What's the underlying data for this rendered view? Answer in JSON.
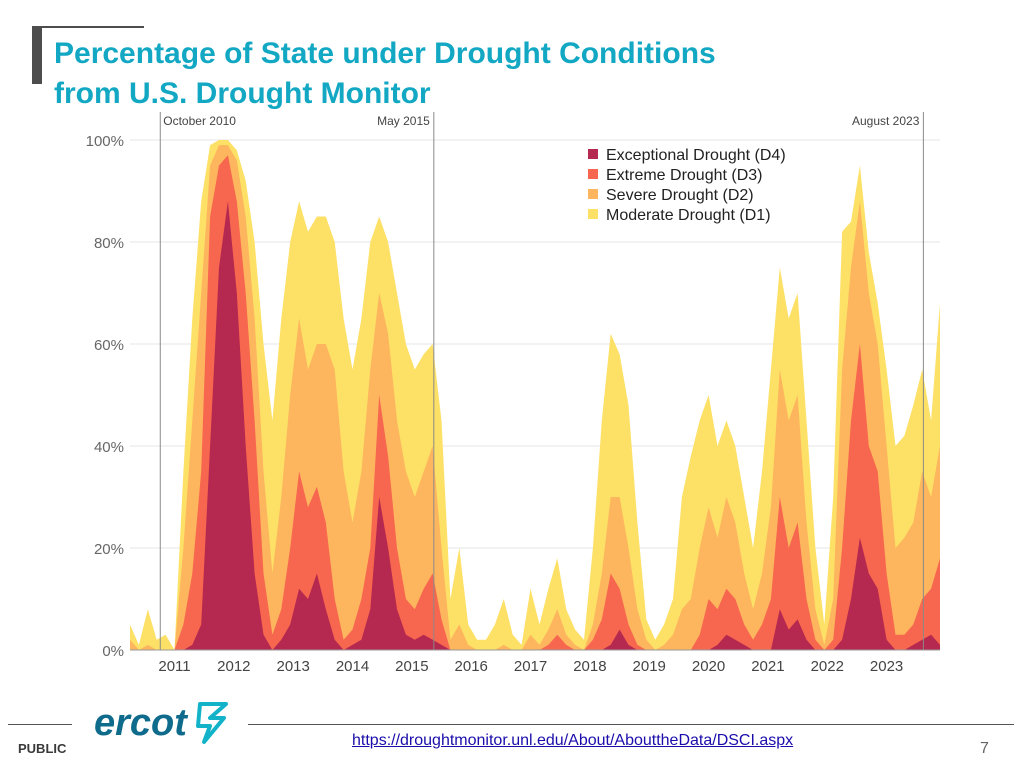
{
  "title": {
    "line1": "Percentage of State under Drought Conditions",
    "line2": "from U.S. Drought Monitor"
  },
  "footer": {
    "public_label": "PUBLIC",
    "logo_text": "ercot",
    "source_link": "https://droughtmonitor.unl.edu/About/AbouttheData/DSCI.aspx",
    "page_number": "7"
  },
  "colors": {
    "title": "#12a7c3",
    "d1": "#fde066",
    "d2": "#fdb55e",
    "d3": "#f7664e",
    "d4": "#b5284f",
    "logo": "#0f6b8c",
    "logo_accent": "#12b3c8"
  },
  "chart_data": {
    "type": "area",
    "ylim": [
      0,
      100
    ],
    "xlim": [
      2010.25,
      2023.9
    ],
    "yticks": [
      0,
      20,
      40,
      60,
      80,
      100
    ],
    "ytick_labels": [
      "0%",
      "20%",
      "40%",
      "60%",
      "80%",
      "100%"
    ],
    "xticks": [
      2011,
      2012,
      2013,
      2014,
      2015,
      2016,
      2017,
      2018,
      2019,
      2020,
      2021,
      2022,
      2023
    ],
    "xtick_labels": [
      "2011",
      "2012",
      "2013",
      "2014",
      "2015",
      "2016",
      "2017",
      "2018",
      "2019",
      "2020",
      "2021",
      "2022",
      "2023"
    ],
    "annotations": [
      {
        "x": 2010.76,
        "label": "October 2010"
      },
      {
        "x": 2015.37,
        "label": "May 2015"
      },
      {
        "x": 2023.62,
        "label": "August 2023"
      }
    ],
    "x": [
      2010.25,
      2010.4,
      2010.55,
      2010.7,
      2010.85,
      2011.0,
      2011.15,
      2011.3,
      2011.45,
      2011.6,
      2011.75,
      2011.9,
      2012.05,
      2012.2,
      2012.35,
      2012.5,
      2012.65,
      2012.8,
      2012.95,
      2013.1,
      2013.25,
      2013.4,
      2013.55,
      2013.7,
      2013.85,
      2014.0,
      2014.15,
      2014.3,
      2014.45,
      2014.6,
      2014.75,
      2014.9,
      2015.05,
      2015.2,
      2015.35,
      2015.5,
      2015.65,
      2015.8,
      2015.95,
      2016.1,
      2016.25,
      2016.4,
      2016.55,
      2016.7,
      2016.85,
      2017.0,
      2017.15,
      2017.3,
      2017.45,
      2017.6,
      2017.75,
      2017.9,
      2018.05,
      2018.2,
      2018.35,
      2018.5,
      2018.65,
      2018.8,
      2018.95,
      2019.1,
      2019.25,
      2019.4,
      2019.55,
      2019.7,
      2019.85,
      2020.0,
      2020.15,
      2020.3,
      2020.45,
      2020.6,
      2020.75,
      2020.9,
      2021.05,
      2021.2,
      2021.35,
      2021.5,
      2021.65,
      2021.8,
      2021.95,
      2022.1,
      2022.25,
      2022.4,
      2022.55,
      2022.7,
      2022.85,
      2023.0,
      2023.15,
      2023.3,
      2023.45,
      2023.6,
      2023.75,
      2023.9
    ],
    "series": [
      {
        "name": "Exceptional Drought (D4)",
        "values": [
          0,
          0,
          0,
          0,
          0,
          0,
          0,
          1,
          5,
          40,
          75,
          88,
          70,
          40,
          15,
          3,
          0,
          2,
          5,
          12,
          10,
          15,
          8,
          2,
          0,
          1,
          2,
          8,
          30,
          20,
          8,
          3,
          2,
          3,
          2,
          1,
          0,
          0,
          0,
          0,
          0,
          0,
          0,
          0,
          0,
          0,
          0,
          0,
          0,
          0,
          0,
          0,
          0,
          0,
          1,
          4,
          1,
          0,
          0,
          0,
          0,
          0,
          0,
          0,
          0,
          0,
          1,
          3,
          2,
          1,
          0,
          0,
          0,
          8,
          4,
          6,
          2,
          0,
          0,
          0,
          2,
          10,
          22,
          15,
          12,
          2,
          0,
          0,
          1,
          2,
          3,
          1
        ]
      },
      {
        "name": "Extreme Drought (D3)",
        "values": [
          0,
          0,
          0,
          0,
          0,
          0,
          5,
          15,
          35,
          85,
          95,
          97,
          88,
          70,
          45,
          15,
          3,
          8,
          20,
          35,
          28,
          32,
          25,
          10,
          2,
          4,
          10,
          20,
          50,
          38,
          20,
          10,
          8,
          12,
          15,
          6,
          0,
          0,
          0,
          0,
          0,
          0,
          0,
          0,
          0,
          0,
          0,
          1,
          3,
          1,
          0,
          0,
          2,
          6,
          15,
          12,
          5,
          1,
          0,
          0,
          0,
          0,
          0,
          0,
          3,
          10,
          8,
          12,
          10,
          5,
          2,
          5,
          10,
          30,
          20,
          25,
          10,
          2,
          0,
          2,
          20,
          45,
          60,
          40,
          35,
          15,
          3,
          3,
          5,
          10,
          12,
          18
        ]
      },
      {
        "name": "Severe Drought (D2)",
        "values": [
          2,
          0,
          1,
          0,
          0,
          0,
          20,
          45,
          70,
          95,
          99,
          99,
          96,
          85,
          65,
          35,
          15,
          30,
          50,
          65,
          55,
          60,
          60,
          55,
          35,
          25,
          35,
          55,
          70,
          62,
          45,
          35,
          30,
          35,
          40,
          20,
          2,
          5,
          1,
          0,
          0,
          0,
          1,
          0,
          0,
          3,
          1,
          4,
          8,
          3,
          1,
          0,
          5,
          15,
          30,
          30,
          20,
          8,
          2,
          0,
          1,
          3,
          8,
          10,
          20,
          28,
          22,
          30,
          25,
          15,
          8,
          15,
          28,
          55,
          45,
          50,
          25,
          8,
          1,
          10,
          55,
          75,
          88,
          70,
          60,
          40,
          20,
          22,
          25,
          35,
          30,
          40
        ]
      },
      {
        "name": "Moderate Drought (D1)",
        "values": [
          5,
          1,
          8,
          2,
          3,
          0,
          35,
          65,
          88,
          99,
          100,
          100,
          98,
          92,
          80,
          60,
          45,
          65,
          80,
          88,
          82,
          85,
          85,
          80,
          65,
          55,
          65,
          80,
          85,
          80,
          70,
          60,
          55,
          58,
          60,
          45,
          10,
          20,
          5,
          2,
          2,
          5,
          10,
          3,
          1,
          12,
          5,
          12,
          18,
          8,
          4,
          2,
          20,
          45,
          62,
          58,
          48,
          25,
          6,
          2,
          5,
          10,
          30,
          38,
          45,
          50,
          40,
          45,
          40,
          30,
          20,
          35,
          55,
          75,
          65,
          70,
          45,
          20,
          5,
          30,
          82,
          84,
          95,
          78,
          68,
          55,
          40,
          42,
          48,
          55,
          45,
          68
        ]
      }
    ]
  }
}
